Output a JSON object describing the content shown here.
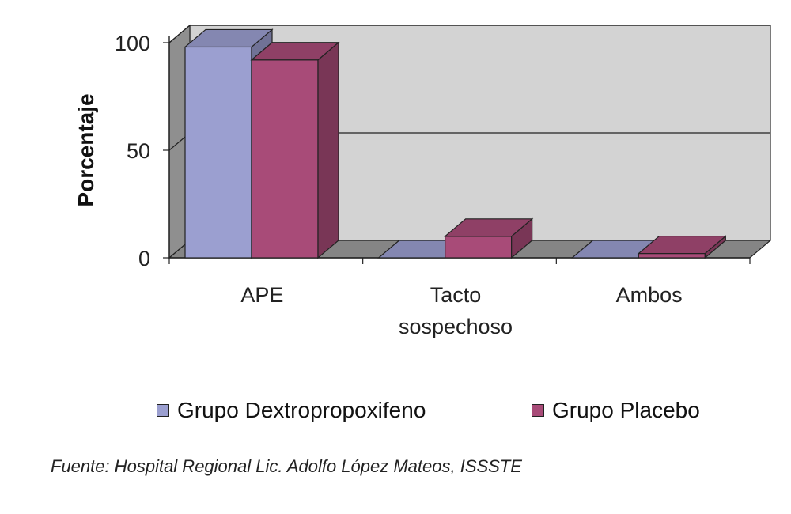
{
  "chart_data": {
    "type": "bar",
    "categories": [
      "APE",
      "Tacto sospechoso",
      "Ambos"
    ],
    "category_lines": [
      [
        "APE"
      ],
      [
        "Tacto",
        "sospechoso"
      ],
      [
        "Ambos"
      ]
    ],
    "series": [
      {
        "name": "Grupo Dextropropoxifeno",
        "values": [
          98,
          0,
          0
        ],
        "color": "#9b9fd0"
      },
      {
        "name": "Grupo Placebo",
        "values": [
          92,
          10,
          2
        ],
        "color": "#a84b78"
      }
    ],
    "ylabel": "Porcentaje",
    "ylim": [
      0,
      100
    ],
    "yticks": [
      "0",
      "50",
      "100"
    ],
    "grid": true,
    "legend_position": "bottom",
    "style": "3d-clustered-bar",
    "wall_color": "#d3d3d3",
    "floor_color": "#858585"
  },
  "source": "Fuente: Hospital Regional Lic. Adolfo López Mateos, ISSSTE"
}
